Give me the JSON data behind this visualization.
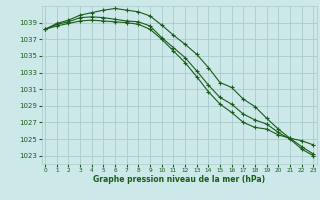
{
  "title": "Graphe pression niveau de la mer (hPa)",
  "bg_color": "#cce8e8",
  "grid_color": "#aacccc",
  "line_color": "#1a5c1a",
  "x_ticks": [
    0,
    1,
    2,
    3,
    4,
    5,
    6,
    7,
    8,
    9,
    10,
    11,
    12,
    13,
    14,
    15,
    16,
    17,
    18,
    19,
    20,
    21,
    22,
    23
  ],
  "y_ticks": [
    1023,
    1025,
    1027,
    1029,
    1031,
    1033,
    1035,
    1037,
    1039
  ],
  "ylim": [
    1022.0,
    1041.0
  ],
  "xlim": [
    -0.3,
    23.3
  ],
  "series": [
    [
      1038.2,
      1038.9,
      1039.3,
      1039.9,
      1040.2,
      1040.5,
      1040.7,
      1040.5,
      1040.3,
      1039.8,
      1038.7,
      1037.5,
      1036.4,
      1035.2,
      1033.6,
      1031.8,
      1031.2,
      1029.8,
      1028.9,
      1027.5,
      1026.2,
      1025.1,
      1024.1,
      1023.2
    ],
    [
      1038.2,
      1038.8,
      1039.1,
      1039.6,
      1039.7,
      1039.6,
      1039.4,
      1039.2,
      1039.1,
      1038.6,
      1037.2,
      1036.0,
      1034.8,
      1033.2,
      1031.5,
      1030.0,
      1029.2,
      1028.0,
      1027.3,
      1026.8,
      1025.8,
      1025.0,
      1023.8,
      1023.0
    ],
    [
      1038.2,
      1038.6,
      1038.9,
      1039.2,
      1039.3,
      1039.2,
      1039.1,
      1039.0,
      1038.8,
      1038.2,
      1037.0,
      1035.6,
      1034.2,
      1032.5,
      1030.7,
      1029.2,
      1028.2,
      1027.0,
      1026.4,
      1026.2,
      1025.5,
      1025.1,
      1024.8,
      1024.3
    ]
  ]
}
